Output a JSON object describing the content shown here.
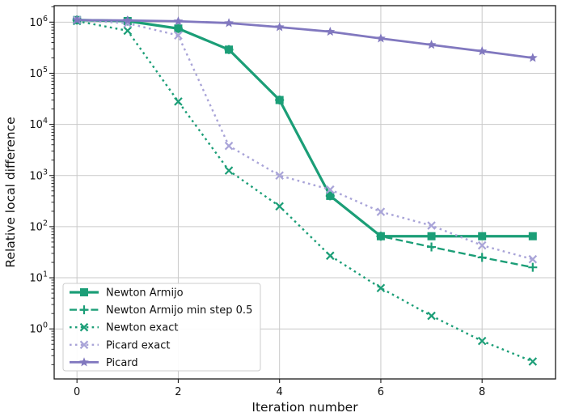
{
  "figure": {
    "background": "#ffffff",
    "grid_color": "#c9c9c9",
    "spine_color": "#1a1a1a"
  },
  "chart_data": {
    "type": "line",
    "title": "",
    "xlabel": "Iteration number",
    "ylabel": "Relative local difference",
    "yscale": "log",
    "grid": true,
    "legend_position": "lower left",
    "xlim": [
      -0.45,
      9.45
    ],
    "ylim": [
      0.105,
      2100000
    ],
    "x_ticks": [
      0,
      2,
      4,
      6,
      8
    ],
    "y_tick_exponents": [
      6,
      5,
      4,
      3,
      2,
      1,
      0
    ],
    "x": [
      0,
      1,
      2,
      3,
      4,
      5,
      6,
      7,
      8,
      9
    ],
    "series": [
      {
        "name": "Newton Armijo",
        "color": "#1b9e77",
        "linestyle": "solid",
        "linewidth": 3.2,
        "marker": "square",
        "values": [
          1100000,
          1050000,
          750000,
          290000,
          30000,
          400,
          65,
          65,
          65,
          65
        ]
      },
      {
        "name": "Newton Armijo min step 0.5",
        "color": "#1b9e77",
        "linestyle": "dashed",
        "linewidth": 2.4,
        "marker": "plus",
        "values": [
          1100000,
          1050000,
          750000,
          290000,
          30000,
          400,
          65,
          40,
          25,
          16
        ]
      },
      {
        "name": "Newton exact",
        "color": "#1b9e77",
        "linestyle": "dotted",
        "linewidth": 2.4,
        "marker": "x",
        "values": [
          1050000,
          680000,
          28000,
          1250,
          250,
          27,
          6.3,
          1.8,
          0.58,
          0.23
        ]
      },
      {
        "name": "Picard exact",
        "color": "#a9a4d8",
        "linestyle": "dotted",
        "linewidth": 2.4,
        "marker": "x",
        "values": [
          1100000,
          950000,
          550000,
          3800,
          1000,
          530,
          195,
          105,
          43,
          23
        ]
      },
      {
        "name": "Picard",
        "color": "#8178bf",
        "linestyle": "solid",
        "linewidth": 2.8,
        "marker": "star",
        "values": [
          1100000,
          1080000,
          1040000,
          960000,
          800000,
          650000,
          480000,
          360000,
          270000,
          200000
        ]
      }
    ]
  }
}
